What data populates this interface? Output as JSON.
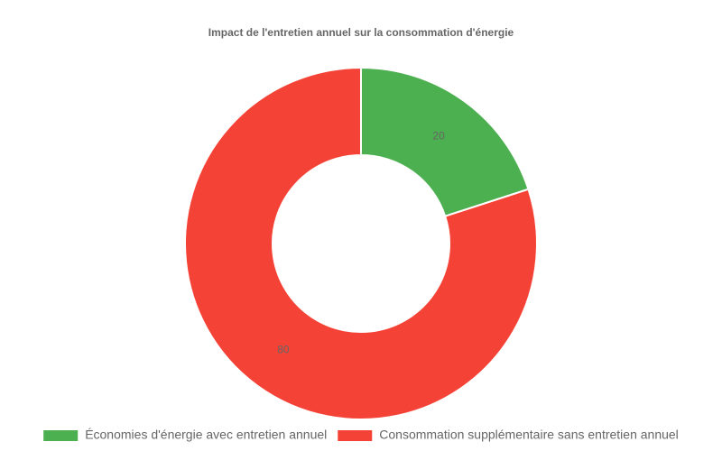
{
  "chart_data": {
    "type": "doughnut",
    "title": "Impact de l'entretien annuel sur la consommation d'énergie",
    "categories": [
      "Économies d'énergie avec entretien annuel",
      "Consommation supplémentaire sans entretien annuel"
    ],
    "values": [
      20,
      80
    ],
    "colors": [
      "#4caf50",
      "#f44336"
    ],
    "legend": "bottom"
  }
}
